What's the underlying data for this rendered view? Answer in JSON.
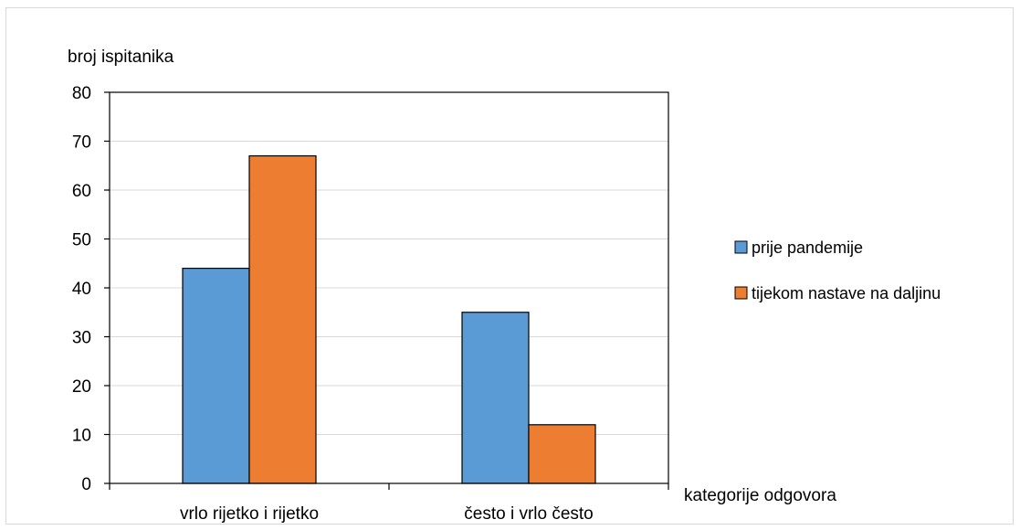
{
  "chart_data": {
    "type": "bar",
    "ylabel": "broj ispitanika",
    "xlabel": "kategorije odgovora",
    "categories": [
      "vrlo rijetko i rijetko",
      "često i vrlo često"
    ],
    "series": [
      {
        "name": "prije pandemije",
        "color": "#5b9bd5",
        "values": [
          44,
          35
        ]
      },
      {
        "name": "tijekom nastave na daljinu",
        "color": "#ed7d31",
        "values": [
          67,
          12
        ]
      }
    ],
    "ylim": [
      0,
      80
    ],
    "yticks": [
      0,
      10,
      20,
      30,
      40,
      50,
      60,
      70,
      80
    ],
    "grid": true,
    "legend_position": "right"
  }
}
